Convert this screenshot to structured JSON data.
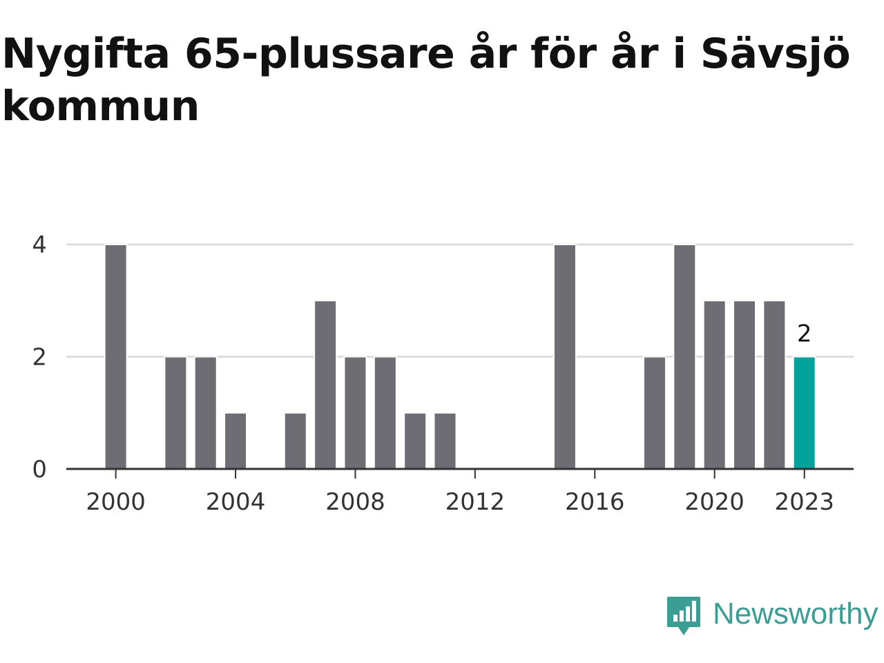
{
  "chart_data": {
    "type": "bar",
    "title": "Nygifta 65-plussare år för år i Sävsjö kommun",
    "xlabel": "",
    "ylabel": "",
    "categories": [
      "2000",
      "2001",
      "2002",
      "2003",
      "2004",
      "2005",
      "2006",
      "2007",
      "2008",
      "2009",
      "2010",
      "2011",
      "2012",
      "2013",
      "2014",
      "2015",
      "2016",
      "2017",
      "2018",
      "2019",
      "2020",
      "2021",
      "2022",
      "2023"
    ],
    "values": [
      4,
      0,
      2,
      2,
      1,
      0,
      1,
      3,
      2,
      2,
      1,
      1,
      0,
      0,
      0,
      4,
      0,
      0,
      2,
      4,
      3,
      3,
      3,
      2
    ],
    "ylim": [
      0,
      4
    ],
    "y_ticks": [
      "0",
      "2",
      "4"
    ],
    "x_ticks": [
      "2000",
      "2004",
      "2008",
      "2012",
      "2016",
      "2020",
      "2023"
    ],
    "highlight": {
      "category": "2023",
      "label": "2"
    },
    "grid": true,
    "colors": {
      "bar": "#6e6d73",
      "highlight": "#00a39b",
      "grid": "#dddddd",
      "axis": "#333333",
      "tick_label": "#333333",
      "annotation": "#111111"
    }
  },
  "brand": {
    "name": "Newsworthy",
    "logo_icon": "newsworthy-bar-chart-bubble-icon",
    "color": "#3a9e94"
  }
}
